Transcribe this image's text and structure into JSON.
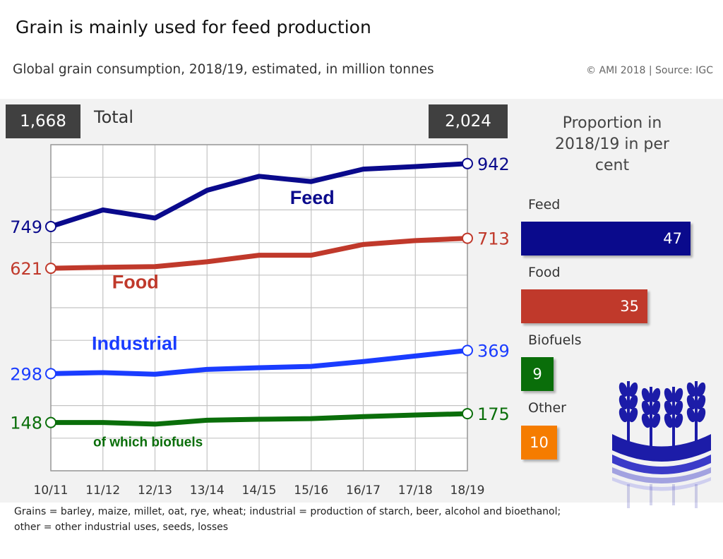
{
  "title": "Grain is mainly used for feed production",
  "subtitle": "Global grain consumption, 2018/19, estimated, in million tonnes",
  "source": "© AMI 2018 | Source: IGC",
  "totals": {
    "start": "1,668",
    "end": "2,024",
    "label": "Total"
  },
  "proportion": {
    "title_line1": "Proportion in",
    "title_line2": "2018/19 in per",
    "title_line3": "cent",
    "items": [
      {
        "label": "Feed",
        "value": 47,
        "value_text": "47",
        "color": "#0a0a8c"
      },
      {
        "label": "Food",
        "value": 35,
        "value_text": "35",
        "color": "#c0392b"
      },
      {
        "label": "Biofuels",
        "value": 9,
        "value_text": "9",
        "color": "#0a6e0a"
      },
      {
        "label": "Other",
        "value": 10,
        "value_text": "10",
        "color": "#f57c00"
      }
    ]
  },
  "footnote": {
    "line1": "Grains = barley, maize, millet, oat, rye, wheat; industrial = production of starch, beer, alcohol and bioethanol;",
    "line2": "other = other industrial uses, seeds, losses"
  },
  "chart_data": {
    "type": "line",
    "x": [
      "10/11",
      "11/12",
      "12/13",
      "13/14",
      "14/15",
      "15/16",
      "16/17",
      "17/18",
      "18/19"
    ],
    "ylim": [
      0,
      1000
    ],
    "grid": true,
    "series": [
      {
        "name": "Feed",
        "color": "#0a0a8c",
        "start_label": "749",
        "end_label": "942",
        "values": [
          749,
          800,
          775,
          860,
          903,
          887,
          925,
          933,
          942
        ]
      },
      {
        "name": "Food",
        "color": "#c0392b",
        "start_label": "621",
        "end_label": "713",
        "values": [
          621,
          624,
          626,
          641,
          661,
          661,
          694,
          706,
          713
        ]
      },
      {
        "name": "Industrial",
        "color": "#1a3cff",
        "start_label": "298",
        "end_label": "369",
        "values": [
          298,
          301,
          296,
          311,
          316,
          320,
          335,
          352,
          369
        ]
      },
      {
        "name": "of which biofuels",
        "color": "#0a6e0a",
        "start_label": "148",
        "end_label": "175",
        "values": [
          148,
          148,
          143,
          155,
          158,
          160,
          166,
          171,
          175
        ]
      }
    ]
  }
}
